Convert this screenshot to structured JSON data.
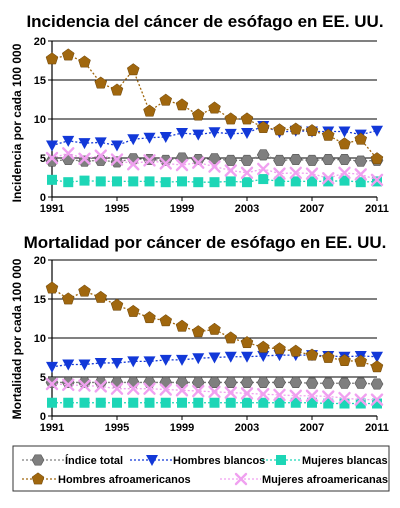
{
  "legend": [
    {
      "key": "total",
      "label": "Índice total"
    },
    {
      "key": "white_men",
      "label": "Hombres blancos"
    },
    {
      "key": "white_women",
      "label": "Mujeres blancas"
    },
    {
      "key": "black_men",
      "label": "Hombres afroamericanos"
    },
    {
      "key": "black_women",
      "label": "Mujeres afroamericanas"
    }
  ],
  "styles": {
    "total": {
      "color": "#7f7f7f",
      "marker": "hexagon"
    },
    "white_men": {
      "color": "#1238d8",
      "marker": "triangle-down"
    },
    "white_women": {
      "color": "#1dd6b6",
      "marker": "square"
    },
    "black_men": {
      "color": "#a0670e",
      "marker": "pentagon"
    },
    "black_women": {
      "color": "#f0a0f0",
      "marker": "x"
    }
  },
  "chart_data": [
    {
      "type": "line",
      "title": "Incidencia del cáncer de esófago en EE. UU.",
      "ylabel": "Incidencia por cada 100 000",
      "xlabel": "",
      "ylim": [
        0,
        20
      ],
      "yticks": [
        0,
        5,
        10,
        15,
        20
      ],
      "xlim": [
        1991,
        2011
      ],
      "xticks": [
        1991,
        1995,
        1999,
        2003,
        2007,
        2011
      ],
      "grid": "horizontal",
      "x": [
        1991,
        1992,
        1993,
        1994,
        1995,
        1996,
        1997,
        1998,
        1999,
        2000,
        2001,
        2002,
        2003,
        2004,
        2005,
        2006,
        2007,
        2008,
        2009,
        2010,
        2011
      ],
      "series": [
        {
          "key": "total",
          "name": "Índice total",
          "values": [
            4.6,
            4.8,
            4.6,
            4.7,
            4.5,
            4.9,
            4.8,
            4.7,
            5.0,
            4.8,
            4.9,
            4.7,
            4.7,
            5.4,
            4.7,
            4.8,
            4.7,
            4.8,
            4.8,
            4.6,
            4.7
          ]
        },
        {
          "key": "white_men",
          "name": "Hombres blancos",
          "values": [
            6.6,
            7.2,
            6.9,
            7.0,
            6.6,
            7.4,
            7.6,
            7.7,
            8.2,
            8.0,
            8.3,
            8.1,
            8.2,
            9.1,
            8.3,
            8.5,
            8.4,
            8.4,
            8.4,
            8.0,
            8.5
          ]
        },
        {
          "key": "white_women",
          "name": "Mujeres blancas",
          "values": [
            2.2,
            1.9,
            2.1,
            2.0,
            2.0,
            2.0,
            2.0,
            1.9,
            2.0,
            1.9,
            1.9,
            2.0,
            1.9,
            2.3,
            2.0,
            2.0,
            2.0,
            2.0,
            2.1,
            1.9,
            2.0
          ]
        },
        {
          "key": "black_men",
          "name": "Hombres afroamericanos",
          "values": [
            17.7,
            18.2,
            17.3,
            14.6,
            13.7,
            16.3,
            11.0,
            12.4,
            11.8,
            10.5,
            11.4,
            10.0,
            10.0,
            8.9,
            8.6,
            8.7,
            8.5,
            7.9,
            6.8,
            7.4,
            4.9
          ]
        },
        {
          "key": "black_women",
          "name": "Mujeres afroamericanas",
          "values": [
            5.0,
            5.6,
            4.9,
            5.3,
            4.8,
            4.2,
            4.7,
            4.3,
            4.1,
            4.4,
            3.9,
            3.4,
            3.1,
            3.6,
            3.0,
            3.1,
            3.0,
            2.4,
            3.1,
            2.9,
            2.2
          ]
        }
      ]
    },
    {
      "type": "line",
      "title": "Mortalidad por cáncer de esófago en EE. UU.",
      "ylabel": "Mortalidad por cada 100 000",
      "xlabel": "",
      "ylim": [
        0,
        20
      ],
      "yticks": [
        0,
        5,
        10,
        15,
        20
      ],
      "xlim": [
        1991,
        2011
      ],
      "xticks": [
        1991,
        1995,
        1999,
        2003,
        2007,
        2011
      ],
      "grid": "horizontal",
      "x": [
        1991,
        1992,
        1993,
        1994,
        1995,
        1996,
        1997,
        1998,
        1999,
        2000,
        2001,
        2002,
        2003,
        2004,
        2005,
        2006,
        2007,
        2008,
        2009,
        2010,
        2011
      ],
      "series": [
        {
          "key": "total",
          "name": "Índice total",
          "values": [
            4.3,
            4.3,
            4.3,
            4.3,
            4.3,
            4.3,
            4.3,
            4.3,
            4.3,
            4.3,
            4.3,
            4.3,
            4.3,
            4.3,
            4.3,
            4.3,
            4.2,
            4.2,
            4.2,
            4.2,
            4.1
          ]
        },
        {
          "key": "white_men",
          "name": "Hombres blancos",
          "values": [
            6.3,
            6.6,
            6.6,
            6.8,
            6.8,
            7.0,
            7.0,
            7.2,
            7.2,
            7.4,
            7.5,
            7.6,
            7.6,
            7.7,
            7.8,
            7.8,
            7.8,
            7.7,
            7.6,
            7.7,
            7.6
          ]
        },
        {
          "key": "white_women",
          "name": "Mujeres blancas",
          "values": [
            1.7,
            1.7,
            1.7,
            1.7,
            1.7,
            1.7,
            1.7,
            1.7,
            1.7,
            1.7,
            1.7,
            1.7,
            1.7,
            1.7,
            1.7,
            1.7,
            1.7,
            1.6,
            1.6,
            1.6,
            1.6
          ]
        },
        {
          "key": "black_men",
          "name": "Hombres afroamericanos",
          "values": [
            16.4,
            15.0,
            16.0,
            15.2,
            14.2,
            13.4,
            12.6,
            12.2,
            11.5,
            10.8,
            11.1,
            10.0,
            9.4,
            8.8,
            8.6,
            8.3,
            7.8,
            7.5,
            7.1,
            7.0,
            6.3
          ]
        },
        {
          "key": "black_women",
          "name": "Mujeres afroamericanas",
          "values": [
            4.1,
            4.0,
            3.9,
            3.8,
            3.5,
            3.5,
            3.5,
            3.4,
            3.3,
            3.2,
            3.1,
            3.0,
            2.9,
            2.8,
            2.7,
            2.6,
            2.6,
            2.5,
            2.3,
            2.1,
            2.1
          ]
        }
      ]
    }
  ]
}
